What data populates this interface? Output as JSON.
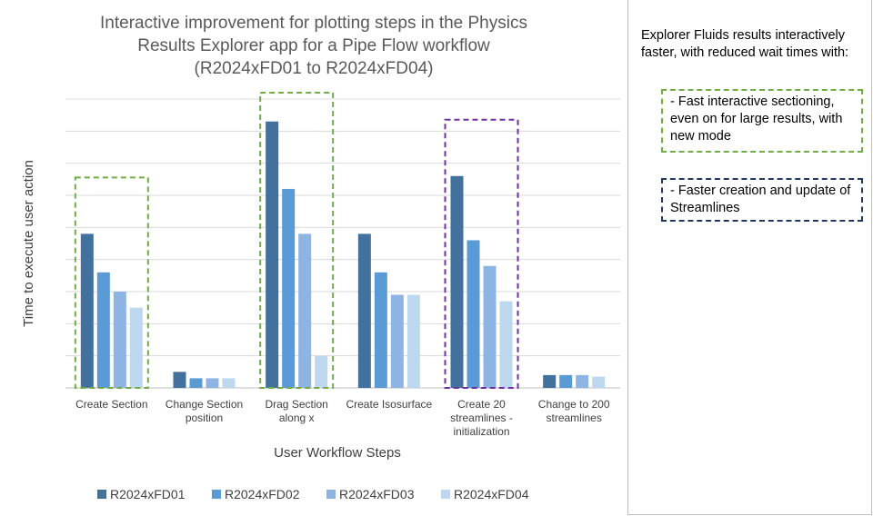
{
  "chart_data": {
    "type": "bar",
    "title_lines": [
      "Interactive improvement for plotting steps in the Physics",
      "Results Explorer app for a Pipe Flow workflow",
      "(R2024xFD01 to R2024xFD04)"
    ],
    "xlabel": "User Workflow Steps",
    "ylabel": "Time to execute user action",
    "y_tick_labels_shown": false,
    "grid": true,
    "ylim": [
      0,
      9
    ],
    "categories": [
      [
        "Create Section"
      ],
      [
        "Change Section",
        "position"
      ],
      [
        "Drag Section",
        "along x"
      ],
      [
        "Create Isosurface"
      ],
      [
        "Create 20",
        "streamlines -",
        "initialization"
      ],
      [
        "Change to 200",
        "streamlines"
      ]
    ],
    "series": [
      {
        "name": "R2024xFD01",
        "color": "#41719c",
        "values": [
          4.8,
          0.5,
          8.3,
          4.8,
          6.6,
          0.4
        ]
      },
      {
        "name": "R2024xFD02",
        "color": "#5b9bd5",
        "values": [
          3.6,
          0.3,
          6.2,
          3.6,
          4.6,
          0.4
        ]
      },
      {
        "name": "R2024xFD03",
        "color": "#8eb4e3",
        "values": [
          3.0,
          0.3,
          4.8,
          2.9,
          3.8,
          0.4
        ]
      },
      {
        "name": "R2024xFD04",
        "color": "#bdd7ee",
        "values": [
          2.5,
          0.3,
          1.0,
          2.9,
          2.7,
          0.35
        ]
      }
    ],
    "legend_position": "bottom",
    "highlights": [
      {
        "categories": [
          0
        ],
        "color": "#70ad47",
        "style": "dashed"
      },
      {
        "categories": [
          2
        ],
        "color": "#70ad47",
        "style": "dashed"
      },
      {
        "categories": [
          4
        ],
        "color": "#7030a0",
        "style": "dashed"
      }
    ]
  },
  "panel": {
    "intro": "Explorer Fluids results interactively faster, with reduced wait times with:",
    "notes": [
      {
        "text": "- Fast interactive sectioning, even on for large results, with new mode",
        "border_color": "#70ad47"
      },
      {
        "text": "- Faster creation and update of Streamlines",
        "border_color": "#203864"
      }
    ]
  }
}
